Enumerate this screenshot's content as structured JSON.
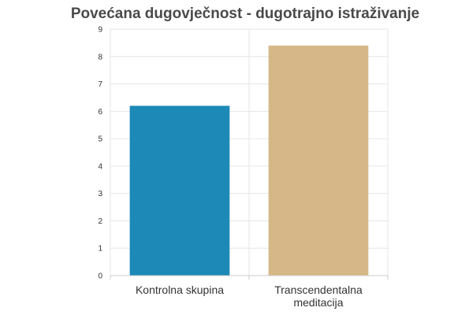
{
  "chart_data": {
    "type": "bar",
    "title": "Povećana dugovječnost - dugotrajno istraživanje",
    "xlabel": "",
    "ylabel": "",
    "categories": [
      [
        "Kontrolna skupina"
      ],
      [
        "Transcendentalna",
        "meditacija"
      ]
    ],
    "values": [
      6.2,
      8.4
    ],
    "bar_colors": [
      "#1c89b6",
      "#d6b888"
    ],
    "ylim": [
      0,
      9
    ],
    "yticks": [
      "0",
      "1",
      "2",
      "3",
      "4",
      "5",
      "6",
      "7",
      "8",
      "9"
    ],
    "grid": true,
    "legend": "none"
  }
}
